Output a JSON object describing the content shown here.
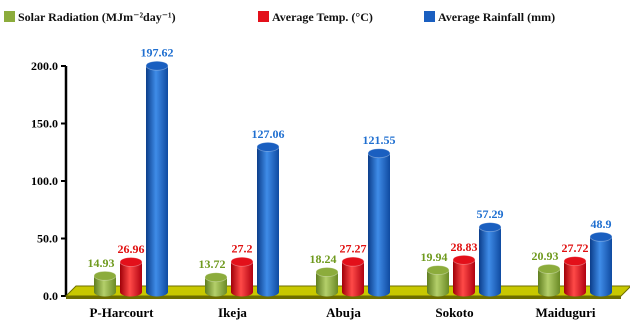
{
  "chart_data": {
    "type": "bar",
    "title": "",
    "xlabel": "",
    "ylabel": "",
    "categories": [
      "P-Harcourt",
      "Ikeja",
      "Abuja",
      "Sokoto",
      "Maiduguri"
    ],
    "series": [
      {
        "name": "Solar Radiation (MJm⁻²day⁻¹)",
        "values": [
          14.93,
          13.72,
          18.24,
          19.94,
          20.93
        ]
      },
      {
        "name": "Average Temp. (°C)",
        "values": [
          26.96,
          27.2,
          27.27,
          28.83,
          27.72
        ]
      },
      {
        "name": "Average Rainfall (mm)",
        "values": [
          197.62,
          127.06,
          121.55,
          57.29,
          48.9
        ]
      }
    ],
    "ylim": [
      0,
      200
    ],
    "yticks": [
      "0.0",
      "50.0",
      "100.0",
      "150.0",
      "200.0"
    ],
    "legend": {
      "position": "top"
    },
    "grid": false,
    "colors": {
      "solar": "#8cac3c",
      "temp": "#e3101a",
      "rain": "#1a5fc0",
      "floor": "#c8c800",
      "floor_edge": "#6e6e00",
      "label_solar": "#6f9a1e",
      "label_temp": "#e01010",
      "label_rain": "#1f6fd0"
    }
  }
}
